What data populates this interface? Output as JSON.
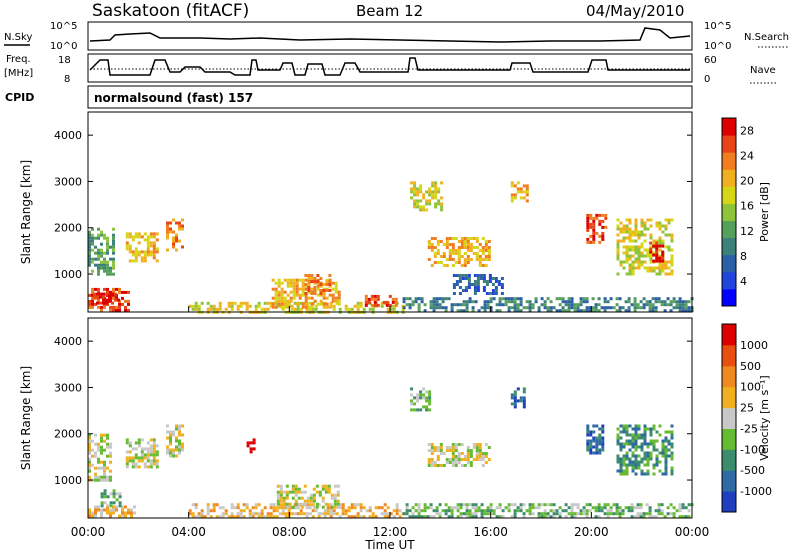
{
  "header": {
    "title": "Saskatoon (fitACF)",
    "beam": "Beam 12",
    "date": "04/May/2010"
  },
  "params": {
    "nsky_label": "N.Sky",
    "nsky_ticks": [
      "10^5",
      "10^0"
    ],
    "nsearch_label": "N.Search",
    "nsearch_ticks": [
      "10^5",
      "10^0"
    ],
    "freq_label": "Freq.",
    "freq_unit": "[MHz]",
    "freq_ticks": [
      "18",
      "8"
    ],
    "nave_label": "Nave",
    "nave_ticks": [
      "60",
      "0"
    ],
    "cpid_label": "CPID",
    "cpid_value": "normalsound (fast) 157"
  },
  "chart_data": [
    {
      "type": "heatmap",
      "title": "",
      "xlabel": "Time UT",
      "ylabel": "Slant Range [km]",
      "x_ticks": [
        "00:00",
        "04:00",
        "08:00",
        "12:00",
        "16:00",
        "20:00",
        "00:00"
      ],
      "xlim_hours": [
        0,
        24
      ],
      "y_ticks": [
        1000,
        2000,
        3000,
        4000
      ],
      "ylim": [
        180,
        4500
      ],
      "colorbar": {
        "label": "Power [dB]",
        "ticks": [
          "4",
          "8",
          "12",
          "16",
          "20",
          "24",
          "28"
        ],
        "range": [
          0,
          30
        ],
        "colors": [
          "#0000ff",
          "#2244dd",
          "#2b5fa8",
          "#3d7f7a",
          "#55a05a",
          "#8ec43a",
          "#d6d617",
          "#f0b020",
          "#f07d20",
          "#e84418",
          "#dd0000"
        ]
      },
      "regions": [
        {
          "t0": 0.0,
          "t1": 1.6,
          "r0": 200,
          "r1": 700,
          "level": 9
        },
        {
          "t0": 0.2,
          "t1": 1.2,
          "r0": 400,
          "r1": 600,
          "level": 10
        },
        {
          "t0": 1.5,
          "t1": 2.8,
          "r0": 1300,
          "r1": 1900,
          "level": 7
        },
        {
          "t0": 3.1,
          "t1": 3.7,
          "r0": 1500,
          "r1": 2200,
          "level": 8
        },
        {
          "t0": 0.0,
          "t1": 1.0,
          "r0": 1000,
          "r1": 2000,
          "level": 4
        },
        {
          "t0": 4.0,
          "t1": 12.5,
          "r0": 200,
          "r1": 400,
          "level": 6
        },
        {
          "t0": 7.3,
          "t1": 10.0,
          "r0": 300,
          "r1": 900,
          "level": 7
        },
        {
          "t0": 8.6,
          "t1": 9.6,
          "r0": 600,
          "r1": 1000,
          "level": 8
        },
        {
          "t0": 11.0,
          "t1": 12.2,
          "r0": 300,
          "r1": 550,
          "level": 9
        },
        {
          "t0": 12.8,
          "t1": 14.0,
          "r0": 2400,
          "r1": 3000,
          "level": 6
        },
        {
          "t0": 13.5,
          "t1": 16.0,
          "r0": 1200,
          "r1": 1800,
          "level": 7
        },
        {
          "t0": 14.5,
          "t1": 16.5,
          "r0": 600,
          "r1": 1000,
          "level": 2
        },
        {
          "t0": 16.8,
          "t1": 17.4,
          "r0": 2600,
          "r1": 3000,
          "level": 7
        },
        {
          "t0": 19.8,
          "t1": 20.6,
          "r0": 1700,
          "r1": 2300,
          "level": 9
        },
        {
          "t0": 21.0,
          "t1": 23.2,
          "r0": 1000,
          "r1": 2200,
          "level": 6
        },
        {
          "t0": 22.3,
          "t1": 22.8,
          "r0": 1300,
          "r1": 1700,
          "level": 10
        },
        {
          "t0": 12.5,
          "t1": 24.0,
          "r0": 200,
          "r1": 500,
          "level": 3
        }
      ]
    },
    {
      "type": "heatmap",
      "title": "",
      "xlabel": "Time UT",
      "ylabel": "Slant Range [km]",
      "x_ticks": [
        "00:00",
        "04:00",
        "08:00",
        "12:00",
        "16:00",
        "20:00",
        "00:00"
      ],
      "xlim_hours": [
        0,
        24
      ],
      "y_ticks": [
        1000,
        2000,
        3000,
        4000
      ],
      "ylim": [
        180,
        4500
      ],
      "colorbar": {
        "label": "Velocity [m s⁻¹]",
        "ticks": [
          "1000",
          "500",
          "100",
          "25",
          "-25",
          "-100",
          "-500",
          "-1000"
        ],
        "colors": [
          "#1f3fbf",
          "#2e6aa3",
          "#3c8d6e",
          "#66bb33",
          "#c8c8c8",
          "#f0b020",
          "#f08a20",
          "#e85010",
          "#dd0000"
        ]
      },
      "regions": [
        {
          "t0": 0.0,
          "t1": 1.8,
          "r0": 200,
          "r1": 450,
          "level": 5
        },
        {
          "t0": 0.5,
          "t1": 1.3,
          "r0": 450,
          "r1": 800,
          "level": 3
        },
        {
          "t0": 1.5,
          "t1": 2.8,
          "r0": 1300,
          "r1": 1900,
          "level": 4
        },
        {
          "t0": 3.1,
          "t1": 3.7,
          "r0": 1500,
          "r1": 2200,
          "level": 4
        },
        {
          "t0": 0.0,
          "t1": 0.9,
          "r0": 1000,
          "r1": 2000,
          "level": 4
        },
        {
          "t0": 4.0,
          "t1": 12.5,
          "r0": 200,
          "r1": 500,
          "level": 5
        },
        {
          "t0": 7.5,
          "t1": 10.0,
          "r0": 400,
          "r1": 900,
          "level": 4
        },
        {
          "t0": 6.3,
          "t1": 6.6,
          "r0": 1600,
          "r1": 1900,
          "level": 8
        },
        {
          "t0": 12.8,
          "t1": 13.6,
          "r0": 2500,
          "r1": 3000,
          "level": 3
        },
        {
          "t0": 13.5,
          "t1": 16.0,
          "r0": 1300,
          "r1": 1800,
          "level": 4
        },
        {
          "t0": 16.8,
          "t1": 17.3,
          "r0": 2600,
          "r1": 3000,
          "level": 1
        },
        {
          "t0": 19.8,
          "t1": 20.5,
          "r0": 1600,
          "r1": 2200,
          "level": 1
        },
        {
          "t0": 21.0,
          "t1": 23.2,
          "r0": 1100,
          "r1": 2200,
          "level": 2
        },
        {
          "t0": 12.5,
          "t1": 24.0,
          "r0": 200,
          "r1": 500,
          "level": 3
        }
      ]
    }
  ]
}
